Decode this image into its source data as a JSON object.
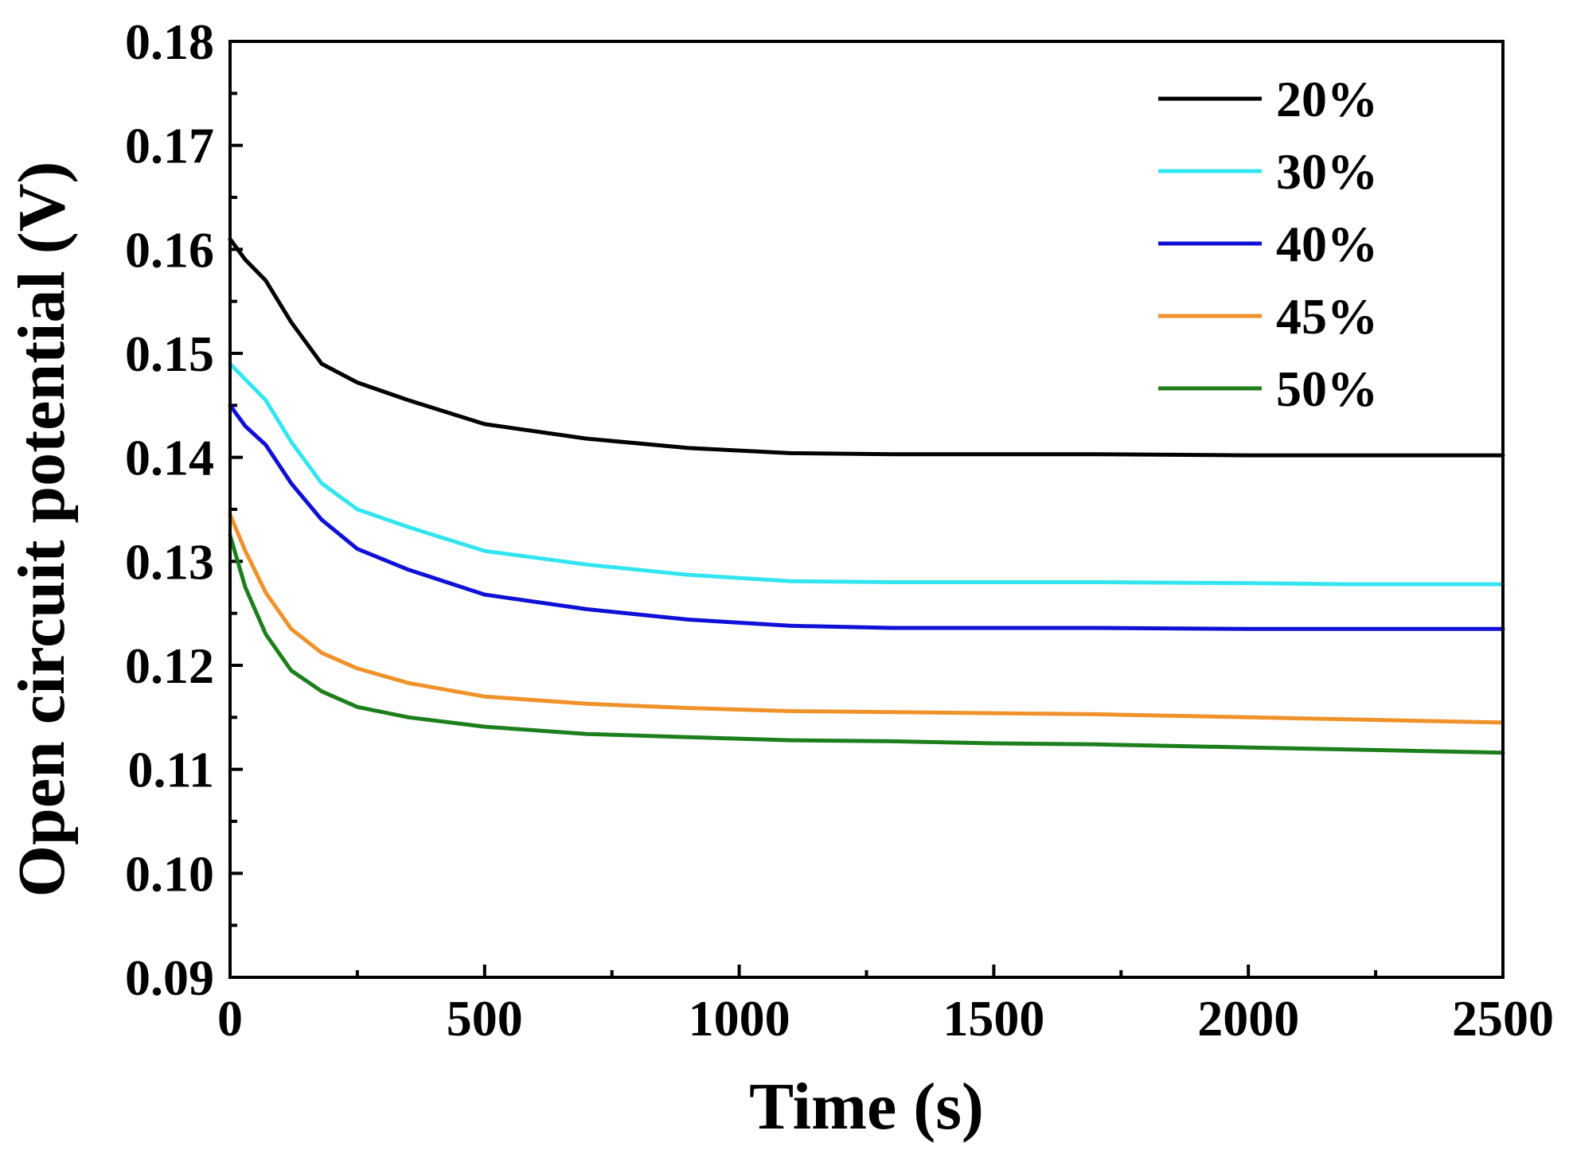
{
  "chart_data": {
    "type": "line",
    "title": "",
    "xlabel": "Time (s)",
    "ylabel": "Open circuit potential (V)",
    "xlim": [
      0,
      2500
    ],
    "ylim": [
      0.09,
      0.18
    ],
    "xticks": [
      0,
      500,
      1000,
      1500,
      2000,
      2500
    ],
    "xtick_labels": [
      "0",
      "500",
      "1000",
      "1500",
      "2000",
      "2500"
    ],
    "yticks": [
      0.09,
      0.1,
      0.11,
      0.12,
      0.13,
      0.14,
      0.15,
      0.16,
      0.17,
      0.18
    ],
    "ytick_labels": [
      "0.09",
      "0.10",
      "0.11",
      "0.12",
      "0.13",
      "0.14",
      "0.15",
      "0.16",
      "0.17",
      "0.18"
    ],
    "grid": false,
    "legend_position": "top-right",
    "series": [
      {
        "name": "20%",
        "color": "#000000",
        "x": [
          0,
          30,
          70,
          120,
          180,
          250,
          350,
          500,
          700,
          900,
          1100,
          1300,
          1500,
          1700,
          2000,
          2200,
          2500
        ],
        "y": [
          0.161,
          0.159,
          0.157,
          0.153,
          0.149,
          0.1472,
          0.1455,
          0.1432,
          0.1418,
          0.1409,
          0.1404,
          0.1403,
          0.1403,
          0.1403,
          0.1402,
          0.1402,
          0.1402
        ]
      },
      {
        "name": "30%",
        "color": "#33e5f0",
        "x": [
          0,
          30,
          70,
          120,
          180,
          250,
          350,
          500,
          700,
          900,
          1100,
          1300,
          1500,
          1700,
          2000,
          2200,
          2500
        ],
        "y": [
          0.149,
          0.1475,
          0.1455,
          0.1415,
          0.1375,
          0.135,
          0.1333,
          0.131,
          0.1297,
          0.1287,
          0.1281,
          0.128,
          0.128,
          0.128,
          0.1279,
          0.1278,
          0.1278
        ]
      },
      {
        "name": "40%",
        "color": "#1010d6",
        "x": [
          0,
          30,
          70,
          120,
          180,
          250,
          350,
          500,
          700,
          900,
          1100,
          1300,
          1500,
          1700,
          2000,
          2200,
          2500
        ],
        "y": [
          0.145,
          0.143,
          0.1412,
          0.1375,
          0.134,
          0.1312,
          0.1292,
          0.1268,
          0.1254,
          0.1244,
          0.1238,
          0.1236,
          0.1236,
          0.1236,
          0.1235,
          0.1235,
          0.1235
        ]
      },
      {
        "name": "45%",
        "color": "#f0922a",
        "x": [
          0,
          30,
          70,
          120,
          180,
          250,
          350,
          500,
          700,
          900,
          1100,
          1300,
          1500,
          1700,
          2000,
          2200,
          2500
        ],
        "y": [
          0.1345,
          0.131,
          0.127,
          0.1235,
          0.1212,
          0.1197,
          0.1183,
          0.117,
          0.1163,
          0.1159,
          0.1156,
          0.1155,
          0.1154,
          0.1153,
          0.115,
          0.1148,
          0.1145
        ]
      },
      {
        "name": "50%",
        "color": "#1c7f1c",
        "x": [
          0,
          30,
          70,
          120,
          180,
          250,
          350,
          500,
          700,
          900,
          1100,
          1300,
          1500,
          1700,
          2000,
          2200,
          2500
        ],
        "y": [
          0.1325,
          0.1275,
          0.123,
          0.1195,
          0.1175,
          0.116,
          0.115,
          0.1141,
          0.1134,
          0.1131,
          0.1128,
          0.1127,
          0.1125,
          0.1124,
          0.1121,
          0.1119,
          0.1116
        ]
      }
    ]
  }
}
